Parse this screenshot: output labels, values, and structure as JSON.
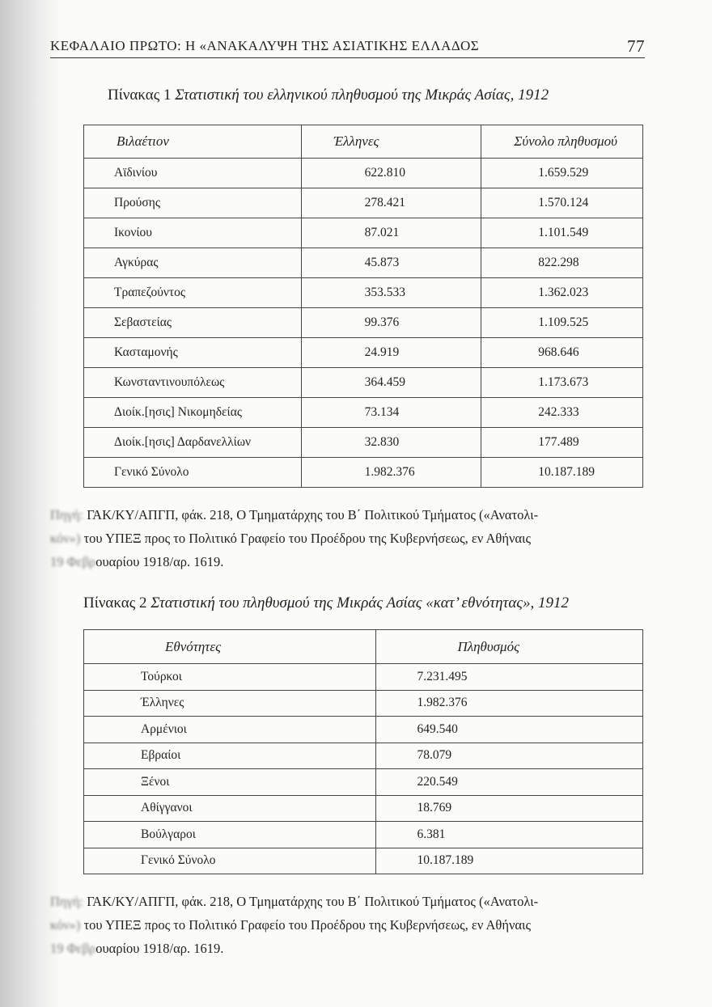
{
  "header": {
    "running_title": "ΚΕΦΑΛΑΙΟ ΠΡΩΤΟ: Η «ΑΝΑΚΑΛΥΨΗ ΤΗΣ ΑΣΙΑΤΙΚΗΣ ΕΛΛΑΔΟΣ",
    "page_number": "77"
  },
  "table1": {
    "label": "Πίνακας 1",
    "title": "Στατιστική του ελληνικού πληθυσμού της Μικράς Ασίας, 1912",
    "columns": [
      "Βιλαέτιον",
      "Έλληνες",
      "Σύνολο πληθυσμού"
    ],
    "rows": [
      [
        "Αϊδινίου",
        "622.810",
        "1.659.529"
      ],
      [
        "Προύσης",
        "278.421",
        "1.570.124"
      ],
      [
        "Ικονίου",
        "87.021",
        "1.101.549"
      ],
      [
        "Αγκύρας",
        "45.873",
        "822.298"
      ],
      [
        "Τραπεζούντος",
        "353.533",
        "1.362.023"
      ],
      [
        "Σεβαστείας",
        "99.376",
        "1.109.525"
      ],
      [
        "Κασταμονής",
        "24.919",
        "968.646"
      ],
      [
        "Κωνσταντινουπόλεως",
        "364.459",
        "1.173.673"
      ],
      [
        "Διοίκ.[ησις] Νικομηδείας",
        "73.134",
        "242.333"
      ],
      [
        "Διοίκ.[ησις] Δαρδανελλίων",
        "32.830",
        "177.489"
      ],
      [
        "Γενικό Σύνολο",
        "1.982.376",
        "10.187.189"
      ]
    ],
    "source": {
      "prefix": "Πηγή:",
      "line1": "ΓΑΚ/ΚΥ/ΑΠΓΠ, φάκ. 218, Ο Τμηματάρχης του Β΄ Πολιτικού Τμήματος («Ανατολι-",
      "prefix2": "κόν»)",
      "line2": "του ΥΠΕΞ προς το Πολιτικό Γραφείο του Προέδρου της Κυβερνήσεως, εν Αθήναις",
      "prefix3": "19 Φεβρ",
      "line3": "ουαρίου 1918/αρ. 1619."
    }
  },
  "table2": {
    "label": "Πίνακας 2",
    "title": "Στατιστική του πληθυσμού της Μικράς Ασίας «κατ’ εθνότητας», 1912",
    "columns": [
      "Εθνότητες",
      "Πληθυσμός"
    ],
    "rows": [
      [
        "Τούρκοι",
        "7.231.495"
      ],
      [
        "Έλληνες",
        "1.982.376"
      ],
      [
        "Αρμένιοι",
        "649.540"
      ],
      [
        "Εβραίοι",
        "78.079"
      ],
      [
        "Ξένοι",
        "220.549"
      ],
      [
        "Αθίγγανοι",
        "18.769"
      ],
      [
        "Βούλγαροι",
        "6.381"
      ],
      [
        "Γενικό Σύνολο",
        "10.187.189"
      ]
    ],
    "source": {
      "prefix": "Πηγή:",
      "line1": "ΓΑΚ/ΚΥ/ΑΠΓΠ, φάκ. 218, Ο Τμηματάρχης του Β΄ Πολιτικού Τμήματος («Ανατολι-",
      "prefix2": "κόν»)",
      "line2": "του ΥΠΕΞ προς το Πολιτικό Γραφείο του Προέδρου της Κυβερνήσεως, εν Αθήναις",
      "prefix3": "19 Φεβρ",
      "line3": "ουαρίου 1918/αρ. 1619."
    }
  }
}
